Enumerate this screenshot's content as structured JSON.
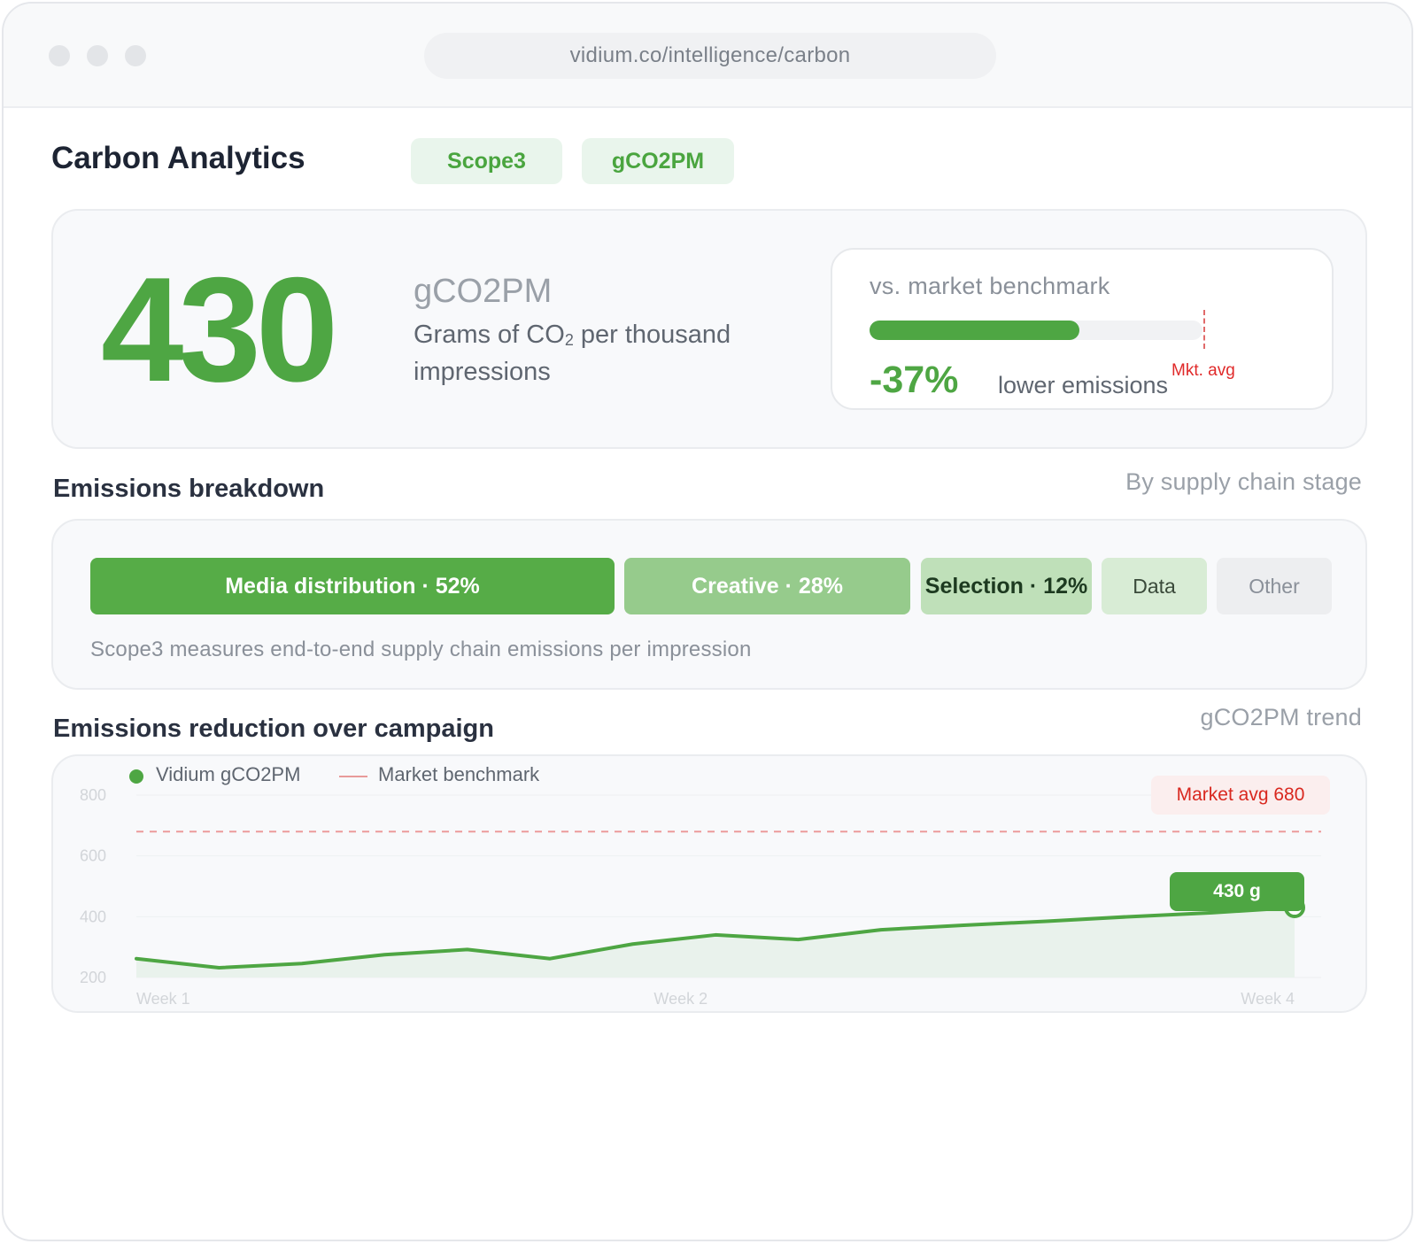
{
  "browser": {
    "url": "vidium.co/intelligence/carbon"
  },
  "header": {
    "title": "Carbon Analytics",
    "tags": [
      "Scope3",
      "gCO2PM"
    ]
  },
  "hero": {
    "value": "430",
    "unit": "gCO2PM",
    "description_prefix": "Grams of CO",
    "description_sub": "2",
    "description_suffix": " per thousand impressions",
    "benchmark": {
      "label": "vs. market benchmark",
      "ratio_to_market": 0.63,
      "marker_label": "Mkt. avg",
      "delta": "-37%",
      "delta_text": "lower emissions"
    }
  },
  "breakdown": {
    "title": "Emissions breakdown",
    "hint": "By supply chain stage",
    "segments": [
      {
        "label": "Media distribution · 52%"
      },
      {
        "label": "Creative · 28%"
      },
      {
        "label": "Selection · 12%"
      },
      {
        "label": "Data"
      },
      {
        "label": "Other"
      }
    ],
    "note": "Scope3 measures end-to-end supply chain emissions per impression"
  },
  "trend": {
    "title": "Emissions reduction over campaign",
    "hint": "gCO2PM trend",
    "market_badge": "Market avg 680",
    "value_badge": "430 g"
  },
  "colors": {
    "accent_green": "#4ea643",
    "benchmark_red": "#e06a6a",
    "badge_red": "#d9281f"
  },
  "chart_data": {
    "type": "line",
    "legend": [
      "Vidium gCO2PM",
      "Market benchmark"
    ],
    "legend_position": "top-left",
    "ylim": [
      200,
      800
    ],
    "yticks": [
      "800",
      "600",
      "400",
      "200"
    ],
    "xticks": [
      "Week 1",
      "Week 2",
      "Week 4"
    ],
    "grid": true,
    "series": [
      {
        "name": "Vidium gCO2PM",
        "x": [
          1,
          1.3,
          1.6,
          1.9,
          2.2,
          2.5,
          2.8,
          3.1,
          3.4,
          3.7,
          4.0,
          4.3,
          4.6,
          4.9,
          5.2
        ],
        "values": [
          262,
          232,
          246,
          275,
          292,
          262,
          310,
          340,
          325,
          357,
          372,
          385,
          400,
          413,
          430
        ]
      },
      {
        "name": "Market benchmark",
        "x": [
          1,
          5.2
        ],
        "values": [
          680,
          680
        ]
      }
    ]
  }
}
